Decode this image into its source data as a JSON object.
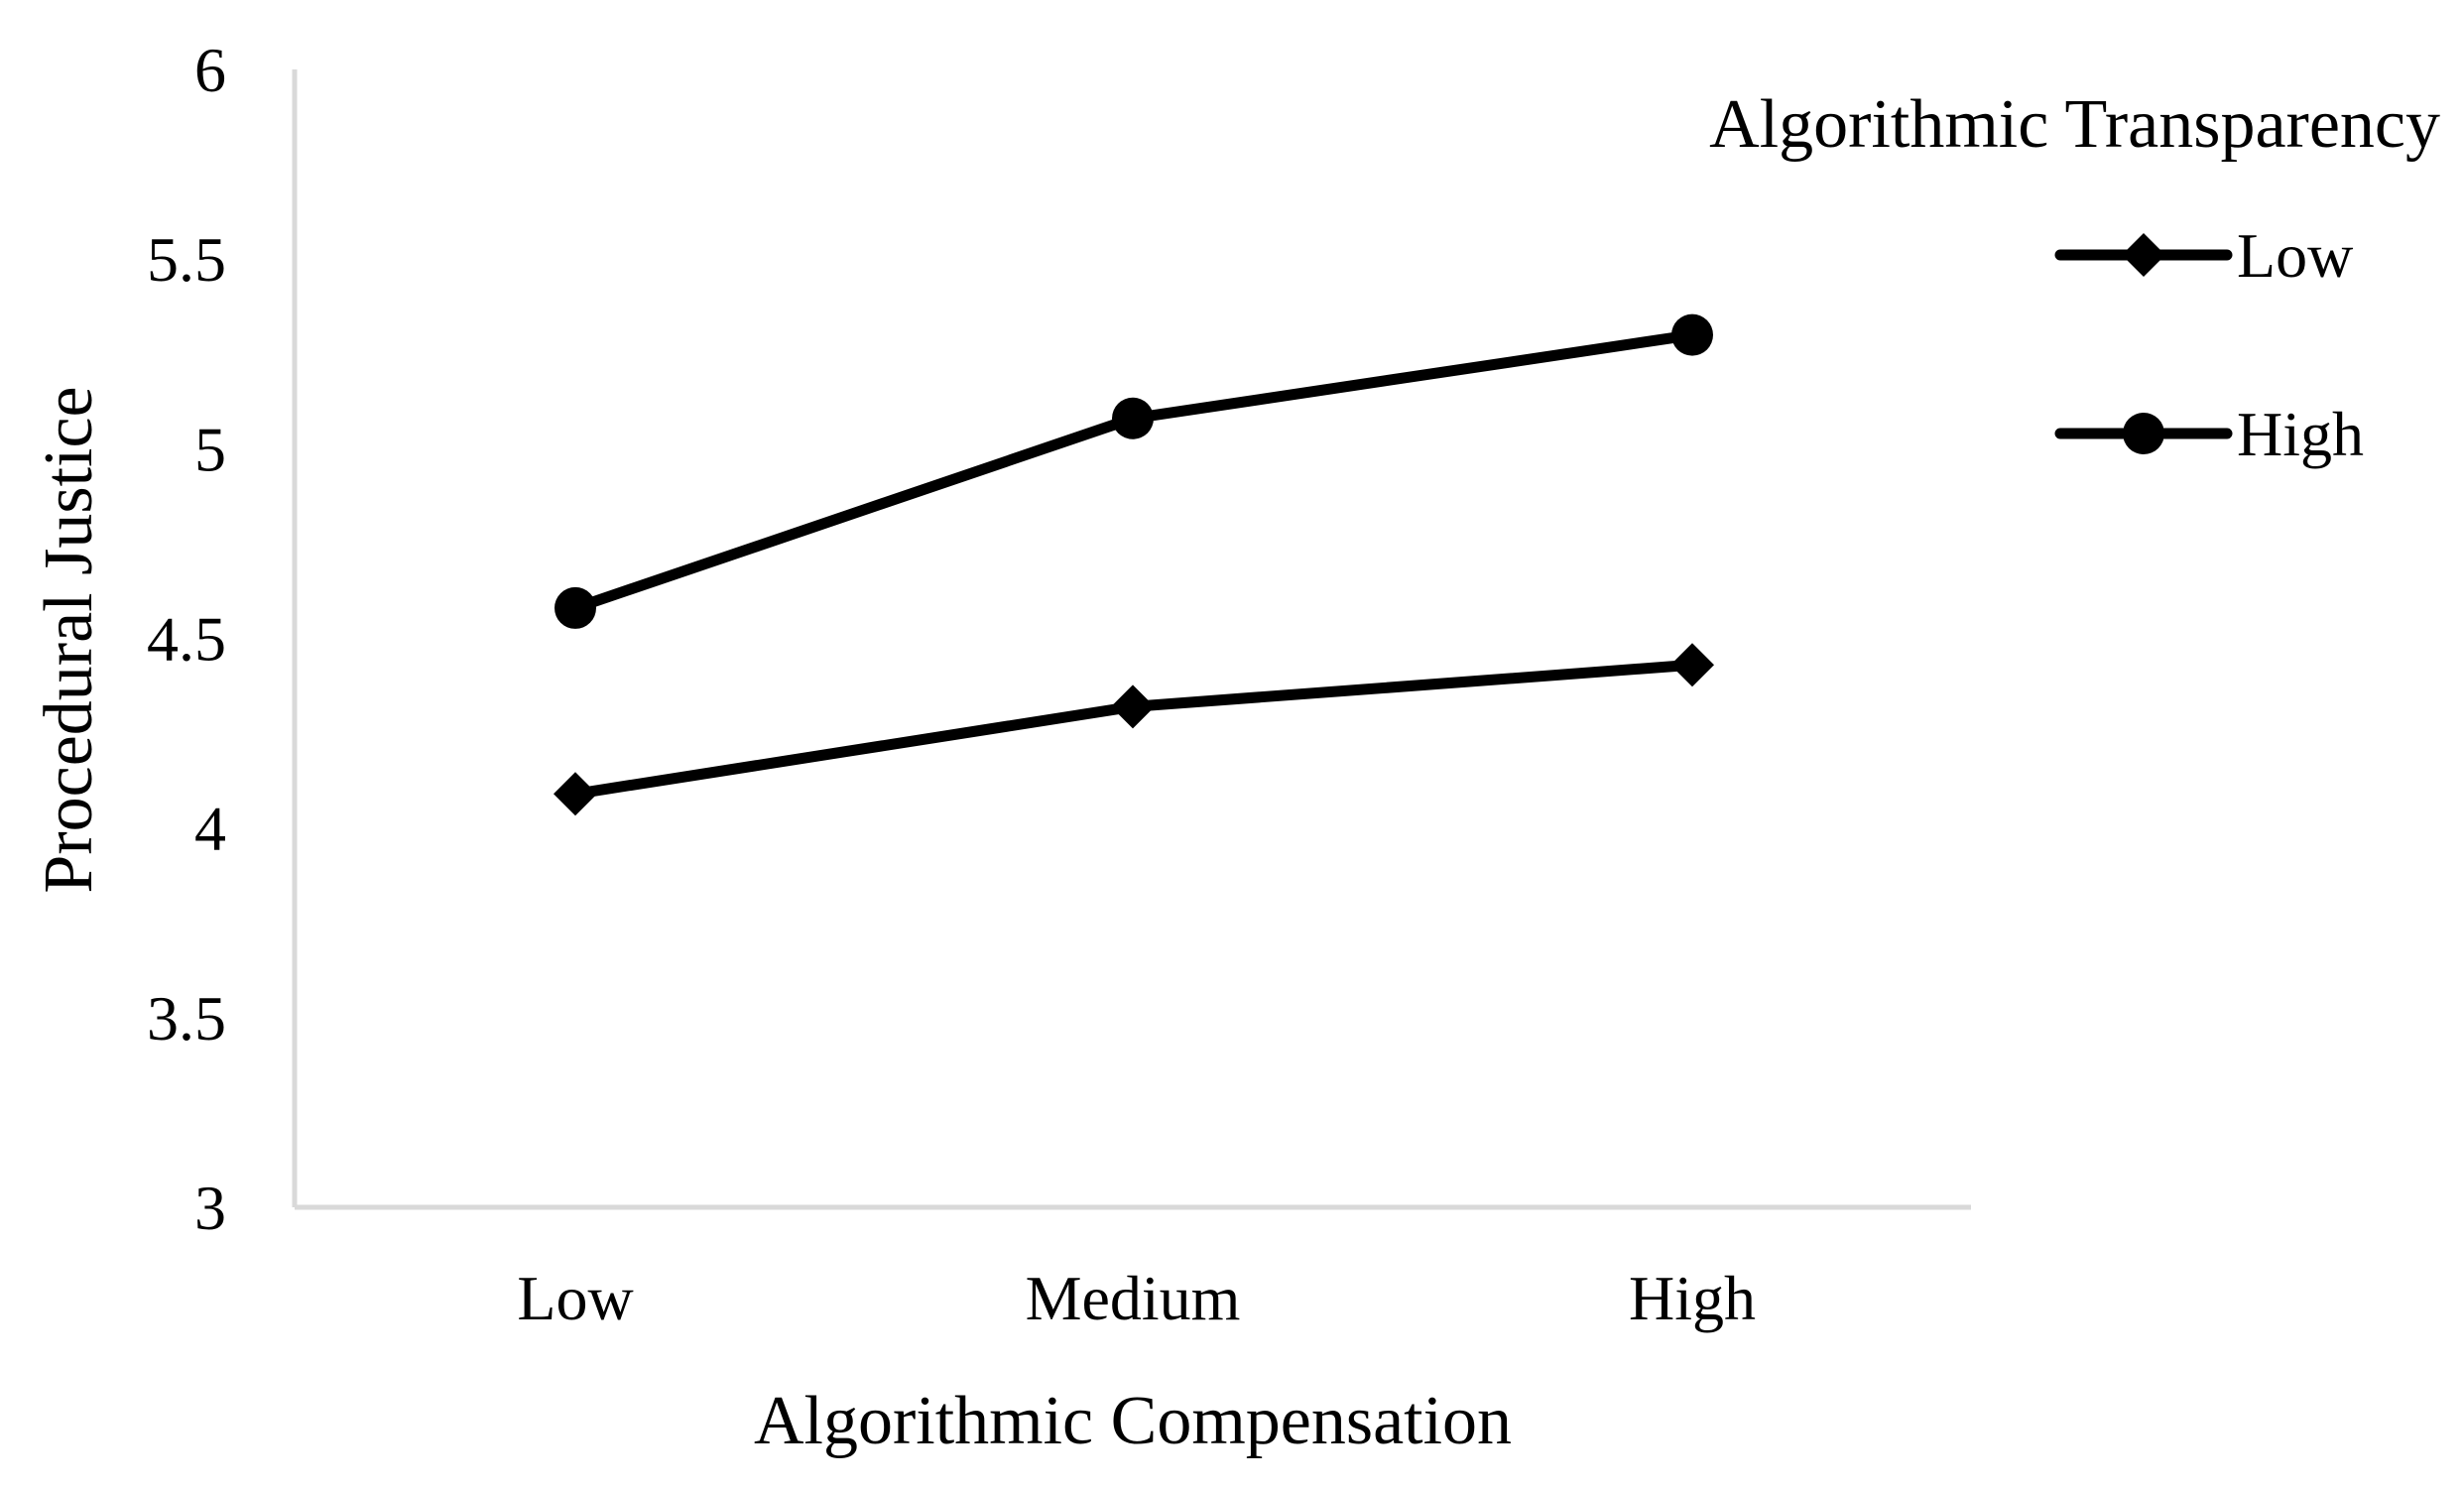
{
  "chart_data": {
    "type": "line",
    "title": "",
    "xlabel": "Algorithmic Compensation",
    "ylabel": "Procedural Justice",
    "categories": [
      "Low",
      "Medium",
      "High"
    ],
    "ylim": [
      3,
      6
    ],
    "yticks": [
      "3",
      "3.5",
      "4",
      "4.5",
      "5",
      "5.5",
      "6"
    ],
    "grid": false,
    "legend": {
      "title": "Algorithmic Transparency",
      "placement": "top-right"
    },
    "series": [
      {
        "name": "Low",
        "marker": "diamond",
        "values": [
          4.09,
          4.32,
          4.43
        ]
      },
      {
        "name": "High",
        "marker": "circle",
        "values": [
          4.58,
          5.08,
          5.3
        ]
      }
    ],
    "colors": {
      "line": "#000000",
      "axis": "#d9d9d9"
    }
  }
}
